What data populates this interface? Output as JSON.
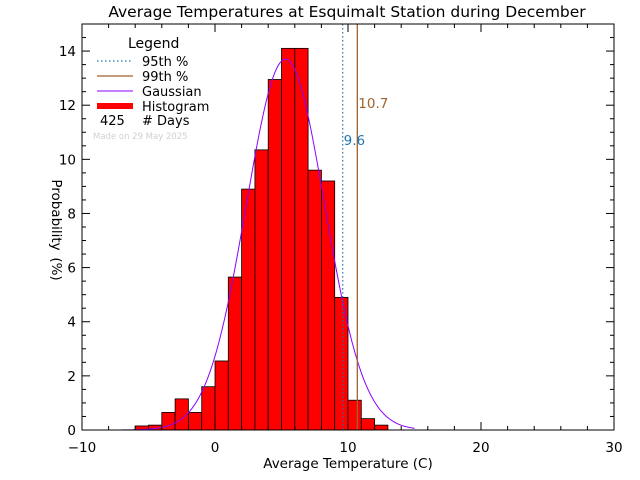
{
  "chart_data": {
    "type": "bar",
    "title": "Average Temperatures at Esquimalt Station during December",
    "xlabel": "Average Temperature (C)",
    "ylabel_parts": [
      "Probability",
      "(%)"
    ],
    "xlim": [
      -10,
      30
    ],
    "ylim": [
      0,
      15
    ],
    "xticks": [
      -10,
      0,
      10,
      20,
      30
    ],
    "yticks": [
      0,
      2,
      4,
      6,
      8,
      10,
      12,
      14
    ],
    "bin_width": 1,
    "histogram": {
      "name": "Histogram",
      "color": "#ff0000",
      "bins": [
        {
          "x": -6,
          "value": 0.15
        },
        {
          "x": -5,
          "value": 0.18
        },
        {
          "x": -4,
          "value": 0.65
        },
        {
          "x": -3,
          "value": 1.15
        },
        {
          "x": -2,
          "value": 0.65
        },
        {
          "x": -1,
          "value": 1.6
        },
        {
          "x": 0,
          "value": 2.55
        },
        {
          "x": 1,
          "value": 5.65
        },
        {
          "x": 2,
          "value": 8.9
        },
        {
          "x": 3,
          "value": 10.35
        },
        {
          "x": 4,
          "value": 12.95
        },
        {
          "x": 5,
          "value": 14.1
        },
        {
          "x": 6,
          "value": 14.1
        },
        {
          "x": 7,
          "value": 9.6
        },
        {
          "x": 8,
          "value": 9.2
        },
        {
          "x": 9,
          "value": 4.9
        },
        {
          "x": 10,
          "value": 1.1
        },
        {
          "x": 11,
          "value": 0.42
        },
        {
          "x": 12,
          "value": 0.18
        }
      ]
    },
    "gaussian": {
      "name": "Gaussian",
      "color": "#8b00ff",
      "mean": 5.3,
      "sigma": 2.95,
      "peak": 13.7
    },
    "percentile_95": {
      "name": "95th %",
      "value": 9.6,
      "label": "9.6",
      "color": "#1f77b4"
    },
    "percentile_99": {
      "name": "99th %",
      "value": 10.7,
      "label": "10.7",
      "color": "#a0622d"
    },
    "legend": {
      "title": "Legend",
      "position": "top-left",
      "items": [
        {
          "key": "p95",
          "label": "95th %",
          "style": "dotted",
          "color": "#1f77b4"
        },
        {
          "key": "p99",
          "label": "99th %",
          "style": "solid",
          "color": "#a0622d"
        },
        {
          "key": "gauss",
          "label": "Gaussian",
          "style": "solid",
          "color": "#8b00ff"
        },
        {
          "key": "hist",
          "label": "Histogram",
          "style": "thick",
          "color": "#ff0000"
        }
      ],
      "days_count": "425",
      "days_label": "# Days",
      "made_on": "Made on 29 May 2025"
    }
  }
}
